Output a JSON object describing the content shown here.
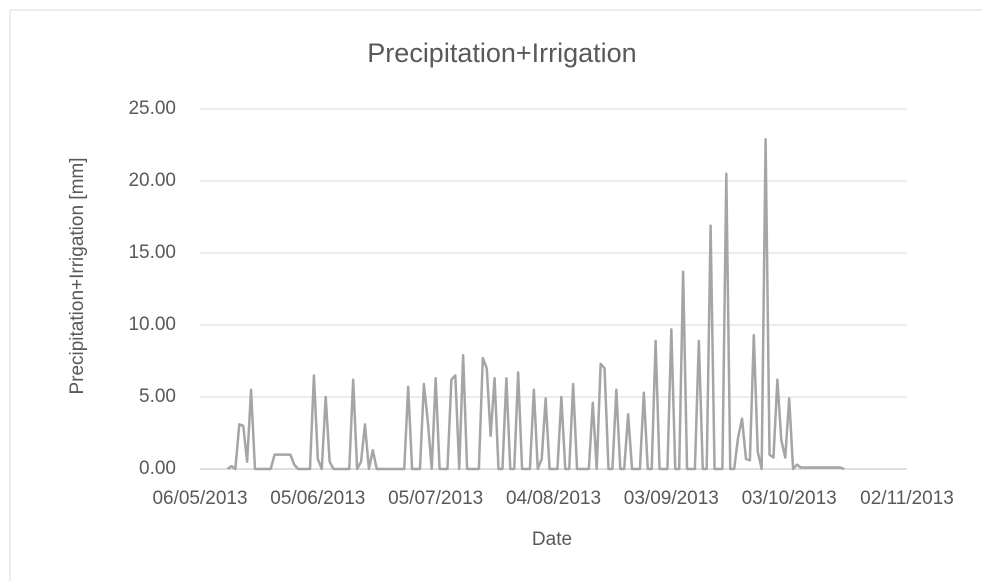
{
  "chart_data": {
    "type": "line",
    "title": "Precipitation+Irrigation",
    "x_label": "Date",
    "y_label": "Precipitation+Irrigation [mm]",
    "x": [
      "2013-05-13",
      "2013-05-14",
      "2013-05-15",
      "2013-05-16",
      "2013-05-17",
      "2013-05-18",
      "2013-05-19",
      "2013-05-20",
      "2013-05-24",
      "2013-05-25",
      "2013-05-29",
      "2013-05-30",
      "2013-05-31",
      "2013-06-03",
      "2013-06-04",
      "2013-06-05",
      "2013-06-06",
      "2013-06-07",
      "2013-06-08",
      "2013-06-09",
      "2013-06-13",
      "2013-06-14",
      "2013-06-15",
      "2013-06-16",
      "2013-06-17",
      "2013-06-18",
      "2013-06-19",
      "2013-06-20",
      "2013-06-27",
      "2013-06-28",
      "2013-06-29",
      "2013-07-01",
      "2013-07-02",
      "2013-07-03",
      "2013-07-04",
      "2013-07-05",
      "2013-07-06",
      "2013-07-08",
      "2013-07-09",
      "2013-07-10",
      "2013-07-11",
      "2013-07-12",
      "2013-07-13",
      "2013-07-16",
      "2013-07-17",
      "2013-07-18",
      "2013-07-19",
      "2013-07-20",
      "2013-07-21",
      "2013-07-22",
      "2013-07-23",
      "2013-07-24",
      "2013-07-25",
      "2013-07-26",
      "2013-07-27",
      "2013-07-29",
      "2013-07-30",
      "2013-07-31",
      "2013-08-01",
      "2013-08-02",
      "2013-08-03",
      "2013-08-05",
      "2013-08-06",
      "2013-08-07",
      "2013-08-08",
      "2013-08-09",
      "2013-08-10",
      "2013-08-13",
      "2013-08-14",
      "2013-08-15",
      "2013-08-16",
      "2013-08-17",
      "2013-08-18",
      "2013-08-19",
      "2013-08-20",
      "2013-08-21",
      "2013-08-22",
      "2013-08-23",
      "2013-08-24",
      "2013-08-26",
      "2013-08-27",
      "2013-08-28",
      "2013-08-29",
      "2013-08-30",
      "2013-08-31",
      "2013-09-02",
      "2013-09-03",
      "2013-09-04",
      "2013-09-05",
      "2013-09-06",
      "2013-09-07",
      "2013-09-09",
      "2013-09-10",
      "2013-09-11",
      "2013-09-12",
      "2013-09-13",
      "2013-09-14",
      "2013-09-16",
      "2013-09-17",
      "2013-09-18",
      "2013-09-19",
      "2013-09-20",
      "2013-09-21",
      "2013-09-22",
      "2013-09-23",
      "2013-09-24",
      "2013-09-25",
      "2013-09-26",
      "2013-09-27",
      "2013-09-28",
      "2013-09-29",
      "2013-09-30",
      "2013-10-01",
      "2013-10-02",
      "2013-10-03",
      "2013-10-04",
      "2013-10-05",
      "2013-10-06",
      "2013-10-16",
      "2013-10-17"
    ],
    "series": [
      {
        "name": "Precipitation+Irrigation",
        "color": "#a5a5a5",
        "values": [
          0,
          0.2,
          0,
          3.1,
          3.0,
          0.5,
          5.5,
          0,
          0,
          1.0,
          1.0,
          0.3,
          0,
          0,
          6.5,
          0.7,
          0,
          5.0,
          0.5,
          0,
          0,
          6.2,
          0,
          0.5,
          3.1,
          0,
          1.3,
          0,
          0,
          5.7,
          0,
          0,
          5.9,
          3.3,
          0,
          6.3,
          0,
          0,
          6.2,
          6.5,
          0,
          7.9,
          0,
          0,
          7.7,
          7.0,
          2.3,
          6.3,
          0,
          0,
          6.3,
          0,
          0,
          6.7,
          0,
          0,
          5.5,
          0,
          0.7,
          4.9,
          0,
          0,
          5.0,
          0,
          0,
          5.9,
          0,
          0,
          4.6,
          0,
          7.3,
          7.0,
          0,
          0,
          5.5,
          0,
          0,
          3.8,
          0,
          0,
          5.3,
          0,
          0,
          8.9,
          0,
          0,
          9.7,
          0,
          0,
          13.7,
          0,
          0,
          8.9,
          0,
          0,
          16.9,
          0,
          0,
          20.5,
          0,
          0,
          2.2,
          3.5,
          0.7,
          0.6,
          9.3,
          1.2,
          0,
          22.9,
          1.0,
          0.8,
          6.2,
          2.0,
          0.8,
          4.9,
          0,
          0.3,
          0.1,
          0.1,
          0
        ]
      }
    ],
    "xlim": [
      "2013-05-06",
      "2013-11-02"
    ],
    "xticks": [
      {
        "value": "2013-05-06",
        "label": "06/05/2013"
      },
      {
        "value": "2013-06-05",
        "label": "05/06/2013"
      },
      {
        "value": "2013-07-05",
        "label": "05/07/2013"
      },
      {
        "value": "2013-08-04",
        "label": "04/08/2013"
      },
      {
        "value": "2013-09-03",
        "label": "03/09/2013"
      },
      {
        "value": "2013-10-03",
        "label": "03/10/2013"
      },
      {
        "value": "2013-11-02",
        "label": "02/11/2013"
      }
    ],
    "ylim": [
      0,
      25
    ],
    "yticks": [
      {
        "value": 0,
        "label": "0.00"
      },
      {
        "value": 5,
        "label": "5.00"
      },
      {
        "value": 10,
        "label": "10.00"
      },
      {
        "value": 15,
        "label": "15.00"
      },
      {
        "value": 20,
        "label": "20.00"
      },
      {
        "value": 25,
        "label": "25.00"
      }
    ],
    "grid": true
  }
}
